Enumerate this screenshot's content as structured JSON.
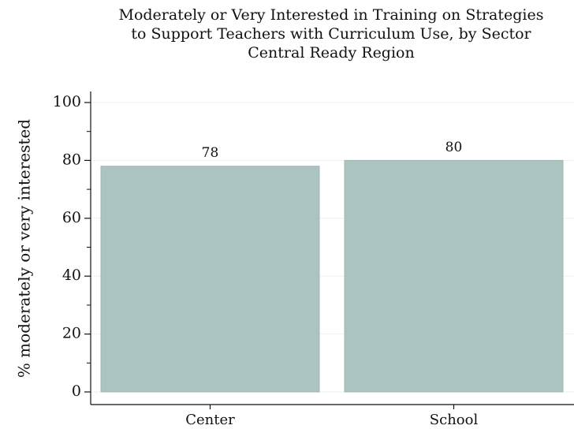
{
  "chart_data": {
    "type": "bar",
    "title": [
      "Moderately or Very Interested in Training on Strategies",
      "to Support Teachers with Curriculum Use, by Sector",
      "Central Ready Region"
    ],
    "y_label": "% moderately or very interested",
    "categories": [
      "Center",
      "School"
    ],
    "values": [
      78,
      80
    ],
    "value_labels": [
      "78",
      "80"
    ],
    "color": "#abc4c1",
    "ylim": [
      0,
      100
    ],
    "yticks": [
      0,
      20,
      40,
      60,
      80,
      100
    ],
    "grid": true
  }
}
